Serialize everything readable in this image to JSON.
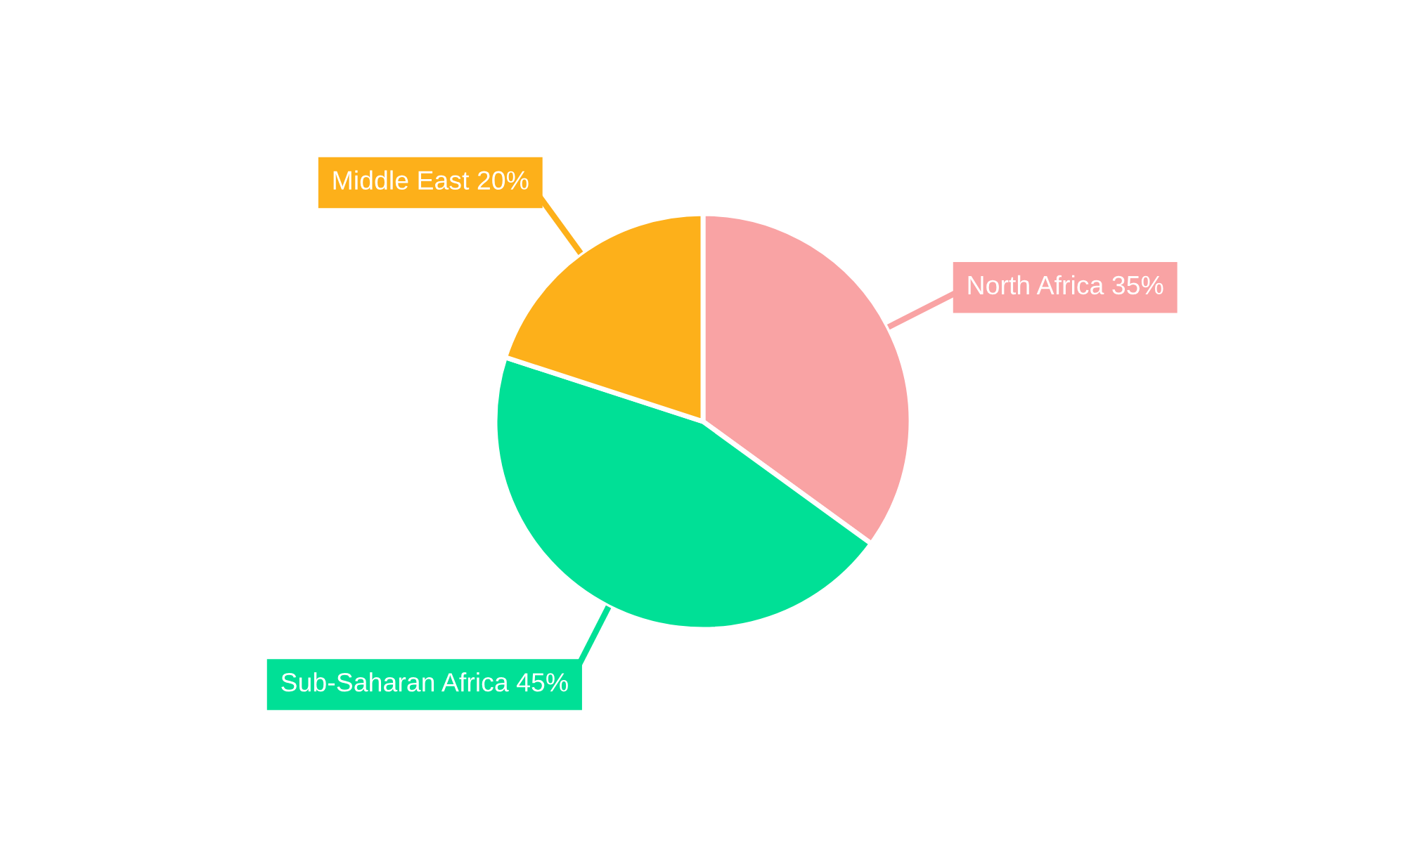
{
  "chart_data": {
    "type": "pie",
    "categories": [
      "North Africa",
      "Sub-Saharan Africa",
      "Middle East"
    ],
    "values": [
      35,
      45,
      20
    ],
    "value_labels": [
      "35%",
      "45%",
      "20%"
    ],
    "colors": [
      "#f9a3a4",
      "#00e096",
      "#fdb01a"
    ],
    "legend": false
  }
}
